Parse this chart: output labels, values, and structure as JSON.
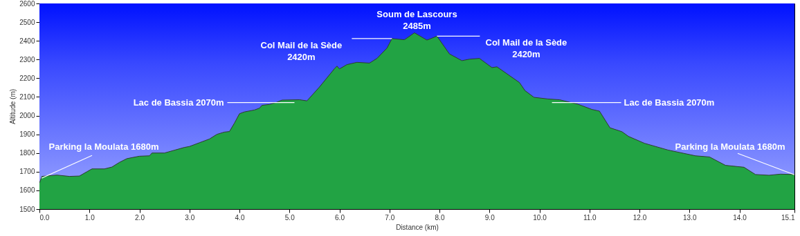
{
  "chart_data": {
    "type": "area",
    "xlabel": "Distance   (km)",
    "ylabel": "Altitude (m)",
    "x": [
      0.0,
      0.05,
      0.35,
      0.6,
      0.8,
      0.95,
      1.05,
      1.3,
      1.45,
      1.6,
      1.75,
      2.0,
      2.2,
      2.25,
      2.5,
      2.7,
      2.9,
      3.0,
      3.2,
      3.4,
      3.55,
      3.7,
      3.8,
      3.9,
      4.0,
      4.1,
      4.3,
      4.4,
      4.45,
      4.6,
      4.75,
      4.85,
      5.2,
      5.35,
      5.6,
      5.9,
      5.95,
      6.0,
      6.15,
      6.35,
      6.6,
      6.75,
      6.95,
      7.05,
      7.3,
      7.5,
      7.75,
      7.95,
      8.2,
      8.45,
      8.6,
      8.8,
      9.05,
      9.15,
      9.6,
      9.71,
      9.89,
      10.17,
      10.4,
      10.77,
      11.05,
      11.2,
      11.41,
      11.65,
      11.78,
      12.1,
      12.57,
      13.12,
      13.4,
      13.72,
      14.09,
      14.32,
      14.59,
      14.82,
      15.1
    ],
    "series": [
      {
        "color": "#22a344",
        "values": [
          1640,
          1675,
          1682,
          1675,
          1677,
          1700,
          1715,
          1715,
          1725,
          1750,
          1770,
          1783,
          1785,
          1800,
          1800,
          1815,
          1830,
          1835,
          1855,
          1875,
          1900,
          1912,
          1915,
          1960,
          2010,
          2020,
          2030,
          2040,
          2055,
          2060,
          2072,
          2083,
          2085,
          2079,
          2153,
          2251,
          2265,
          2250,
          2273,
          2285,
          2281,
          2306,
          2361,
          2412,
          2406,
          2443,
          2404,
          2425,
          2330,
          2294,
          2302,
          2306,
          2257,
          2261,
          2177,
          2134,
          2098,
          2089,
          2085,
          2061,
          2033,
          2024,
          1935,
          1914,
          1889,
          1852,
          1816,
          1785,
          1779,
          1734,
          1724,
          1685,
          1681,
          1687,
          1685
        ]
      }
    ],
    "xlim": [
      0,
      15.1
    ],
    "ylim": [
      1500,
      2600
    ],
    "xticks": [
      {
        "value": 0,
        "label": "0.0"
      },
      {
        "value": 1,
        "label": "1.0"
      },
      {
        "value": 2,
        "label": "2.0"
      },
      {
        "value": 3,
        "label": "3.0"
      },
      {
        "value": 4,
        "label": "4.0"
      },
      {
        "value": 5,
        "label": "5.0"
      },
      {
        "value": 6,
        "label": "6.0"
      },
      {
        "value": 7,
        "label": "7.0"
      },
      {
        "value": 8,
        "label": "8.0"
      },
      {
        "value": 9,
        "label": "9.0"
      },
      {
        "value": 10,
        "label": "10.0"
      },
      {
        "value": 11,
        "label": "11.0"
      },
      {
        "value": 12,
        "label": "12.0"
      },
      {
        "value": 13,
        "label": "13.0"
      },
      {
        "value": 14,
        "label": "14.0"
      },
      {
        "value": 15.1,
        "label": "15.1"
      }
    ],
    "yticks": [
      {
        "value": 1500,
        "label": "1500"
      },
      {
        "value": 1600,
        "label": "1600"
      },
      {
        "value": 1700,
        "label": "1700"
      },
      {
        "value": 1800,
        "label": "1800"
      },
      {
        "value": 1900,
        "label": "1900"
      },
      {
        "value": 2000,
        "label": "2000"
      },
      {
        "value": 2100,
        "label": "2100"
      },
      {
        "value": 2200,
        "label": "2200"
      },
      {
        "value": 2300,
        "label": "2300"
      },
      {
        "value": 2400,
        "label": "2400"
      },
      {
        "value": 2500,
        "label": "2500"
      },
      {
        "value": 2600,
        "label": "2600"
      }
    ],
    "grid": "y",
    "annotations": [
      {
        "text": "Parking la Moulata 1680m",
        "x": 0.0,
        "y": 1680
      },
      {
        "text": "Lac de Bassia 2070m",
        "x": 5.1,
        "y": 2070
      },
      {
        "text": "Col Mail de la Sède\n2420m",
        "x": 7.05,
        "y": 2412
      },
      "Soum de Lascours\n2485m",
      {
        "text": "Col Mail de la Sède\n2420m",
        "x": 7.95,
        "y": 2425
      },
      {
        "text": "Lac de Bassia 2070m",
        "x": 10.25,
        "y": 2070
      },
      {
        "text": "Parking la Moulata 1680m",
        "x": 15.1,
        "y": 1680
      }
    ]
  }
}
